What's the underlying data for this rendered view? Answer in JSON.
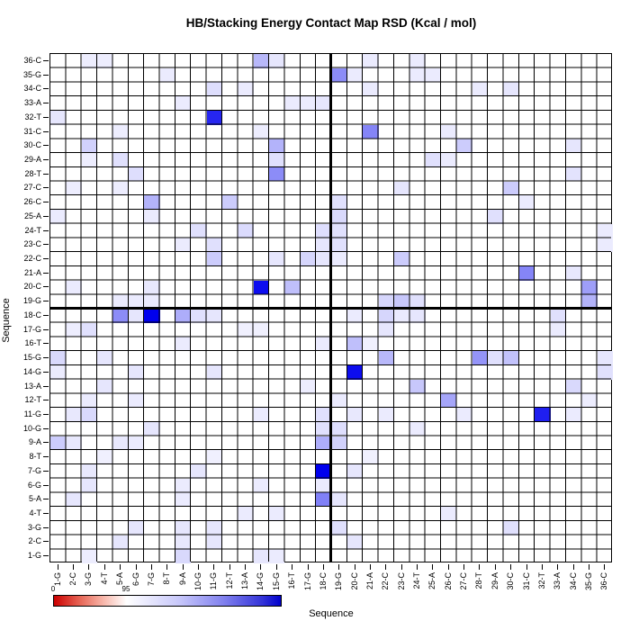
{
  "title": "HB/Stacking Energy Contact Map RSD (Kcal / mol)",
  "legend": {
    "min_label": "0",
    "mid_label": "95",
    "left_color": "#cc0000",
    "mid_color": "#ffffff",
    "right_color": "#0000cc",
    "white_position_pct": 32
  },
  "chart_data": {
    "type": "heatmap",
    "title": "HB/Stacking Energy Contact Map RSD (Kcal / mol)",
    "xlabel": "Sequence",
    "ylabel": "Sequence",
    "x_categories": [
      "1-G",
      "2-C",
      "3-G",
      "4-T",
      "5-A",
      "6-G",
      "7-G",
      "8-T",
      "9-A",
      "10-G",
      "11-G",
      "12-T",
      "13-A",
      "14-G",
      "15-G",
      "16-T",
      "17-G",
      "18-C",
      "19-G",
      "20-C",
      "21-A",
      "22-C",
      "23-C",
      "24-T",
      "25-A",
      "26-C",
      "27-C",
      "28-T",
      "29-A",
      "30-C",
      "31-C",
      "32-T",
      "33-A",
      "34-C",
      "35-G",
      "36-C"
    ],
    "y_categories": [
      "1-G",
      "2-C",
      "3-G",
      "4-T",
      "5-A",
      "6-G",
      "7-G",
      "8-T",
      "9-A",
      "10-G",
      "11-G",
      "12-T",
      "13-A",
      "14-G",
      "15-G",
      "16-T",
      "17-G",
      "18-C",
      "19-G",
      "20-C",
      "21-A",
      "22-C",
      "23-C",
      "24-T",
      "25-A",
      "26-C",
      "27-C",
      "28-T",
      "29-A",
      "30-C",
      "31-C",
      "32-T",
      "33-A",
      "34-C",
      "35-G",
      "36-C"
    ],
    "grid_on": true,
    "strand_divider_after_index": 18,
    "cell_max_color": "#0000ee",
    "cell_min_color": "#ffffff",
    "value_scale": "0 = white, 1 = saturated blue",
    "cells": [
      [
        "36-C",
        "3-G",
        0.07
      ],
      [
        "36-C",
        "4-T",
        0.07
      ],
      [
        "36-C",
        "14-G",
        0.28
      ],
      [
        "36-C",
        "15-G",
        0.1
      ],
      [
        "36-C",
        "21-A",
        0.08
      ],
      [
        "36-C",
        "24-T",
        0.08
      ],
      [
        "35-G",
        "8-T",
        0.08
      ],
      [
        "35-G",
        "19-G",
        0.45
      ],
      [
        "35-G",
        "20-C",
        0.08
      ],
      [
        "35-G",
        "24-T",
        0.08
      ],
      [
        "35-G",
        "25-A",
        0.08
      ],
      [
        "34-C",
        "11-G",
        0.13
      ],
      [
        "34-C",
        "13-A",
        0.08
      ],
      [
        "34-C",
        "21-A",
        0.08
      ],
      [
        "34-C",
        "28-T",
        0.08
      ],
      [
        "34-C",
        "30-C",
        0.1
      ],
      [
        "33-A",
        "9-A",
        0.08
      ],
      [
        "33-A",
        "16-T",
        0.08
      ],
      [
        "33-A",
        "17-G",
        0.08
      ],
      [
        "33-A",
        "18-C",
        0.1
      ],
      [
        "32-T",
        "1-G",
        0.1
      ],
      [
        "32-T",
        "11-G",
        0.85
      ],
      [
        "31-C",
        "5-A",
        0.07
      ],
      [
        "31-C",
        "14-G",
        0.07
      ],
      [
        "31-C",
        "21-A",
        0.48
      ],
      [
        "31-C",
        "26-C",
        0.08
      ],
      [
        "30-C",
        "3-G",
        0.18
      ],
      [
        "30-C",
        "15-G",
        0.3
      ],
      [
        "30-C",
        "27-C",
        0.2
      ],
      [
        "30-C",
        "34-C",
        0.1
      ],
      [
        "29-A",
        "3-G",
        0.07
      ],
      [
        "29-A",
        "5-A",
        0.12
      ],
      [
        "29-A",
        "15-G",
        0.12
      ],
      [
        "29-A",
        "25-A",
        0.12
      ],
      [
        "29-A",
        "26-C",
        0.08
      ],
      [
        "28-T",
        "6-G",
        0.13
      ],
      [
        "28-T",
        "15-G",
        0.45
      ],
      [
        "28-T",
        "34-C",
        0.11
      ],
      [
        "27-C",
        "2-C",
        0.07
      ],
      [
        "27-C",
        "5-A",
        0.07
      ],
      [
        "27-C",
        "23-C",
        0.1
      ],
      [
        "27-C",
        "30-C",
        0.2
      ],
      [
        "26-C",
        "7-G",
        0.3
      ],
      [
        "26-C",
        "12-T",
        0.2
      ],
      [
        "26-C",
        "19-G",
        0.12
      ],
      [
        "26-C",
        "31-C",
        0.08
      ],
      [
        "25-A",
        "1-G",
        0.08
      ],
      [
        "25-A",
        "7-G",
        0.08
      ],
      [
        "25-A",
        "19-G",
        0.15
      ],
      [
        "25-A",
        "29-A",
        0.12
      ],
      [
        "24-T",
        "10-G",
        0.12
      ],
      [
        "24-T",
        "13-A",
        0.14
      ],
      [
        "24-T",
        "18-C",
        0.13
      ],
      [
        "24-T",
        "19-G",
        0.12
      ],
      [
        "24-T",
        "36-C",
        0.08
      ],
      [
        "23-C",
        "9-A",
        0.08
      ],
      [
        "23-C",
        "11-G",
        0.12
      ],
      [
        "23-C",
        "18-C",
        0.1
      ],
      [
        "23-C",
        "19-G",
        0.12
      ],
      [
        "23-C",
        "36-C",
        0.08
      ],
      [
        "22-C",
        "11-G",
        0.2
      ],
      [
        "22-C",
        "15-G",
        0.1
      ],
      [
        "22-C",
        "17-G",
        0.16
      ],
      [
        "22-C",
        "18-C",
        0.1
      ],
      [
        "22-C",
        "19-G",
        0.08
      ],
      [
        "22-C",
        "23-C",
        0.2
      ],
      [
        "21-A",
        "31-C",
        0.48
      ],
      [
        "21-A",
        "34-C",
        0.09
      ],
      [
        "20-C",
        "2-C",
        0.08
      ],
      [
        "20-C",
        "7-G",
        0.09
      ],
      [
        "20-C",
        "14-G",
        0.95
      ],
      [
        "20-C",
        "16-T",
        0.25
      ],
      [
        "20-C",
        "35-G",
        0.38
      ],
      [
        "19-G",
        "5-A",
        0.08
      ],
      [
        "19-G",
        "6-G",
        0.08
      ],
      [
        "19-G",
        "7-G",
        0.08
      ],
      [
        "19-G",
        "22-C",
        0.16
      ],
      [
        "19-G",
        "23-C",
        0.22
      ],
      [
        "19-G",
        "24-T",
        0.12
      ],
      [
        "19-G",
        "35-G",
        0.3
      ],
      [
        "18-C",
        "5-A",
        0.45
      ],
      [
        "18-C",
        "6-G",
        0.1
      ],
      [
        "18-C",
        "7-G",
        1.0
      ],
      [
        "18-C",
        "9-A",
        0.32
      ],
      [
        "18-C",
        "10-G",
        0.12
      ],
      [
        "18-C",
        "11-G",
        0.1
      ],
      [
        "18-C",
        "20-C",
        0.08
      ],
      [
        "18-C",
        "22-C",
        0.16
      ],
      [
        "18-C",
        "23-C",
        0.08
      ],
      [
        "18-C",
        "24-T",
        0.1
      ],
      [
        "18-C",
        "33-A",
        0.12
      ],
      [
        "17-G",
        "2-C",
        0.07
      ],
      [
        "17-G",
        "3-G",
        0.12
      ],
      [
        "17-G",
        "13-A",
        0.06
      ],
      [
        "17-G",
        "14-G",
        0.06
      ],
      [
        "17-G",
        "22-C",
        0.1
      ],
      [
        "17-G",
        "33-A",
        0.08
      ],
      [
        "16-T",
        "9-A",
        0.08
      ],
      [
        "16-T",
        "18-C",
        0.08
      ],
      [
        "16-T",
        "20-C",
        0.25
      ],
      [
        "16-T",
        "21-A",
        0.06
      ],
      [
        "15-G",
        "1-G",
        0.15
      ],
      [
        "15-G",
        "4-T",
        0.1
      ],
      [
        "15-G",
        "22-C",
        0.28
      ],
      [
        "15-G",
        "28-T",
        0.42
      ],
      [
        "15-G",
        "29-A",
        0.12
      ],
      [
        "15-G",
        "30-C",
        0.24
      ],
      [
        "15-G",
        "36-C",
        0.1
      ],
      [
        "14-G",
        "1-G",
        0.08
      ],
      [
        "14-G",
        "6-G",
        0.1
      ],
      [
        "14-G",
        "11-G",
        0.1
      ],
      [
        "14-G",
        "20-C",
        0.95
      ],
      [
        "14-G",
        "36-C",
        0.12
      ],
      [
        "13-A",
        "4-T",
        0.1
      ],
      [
        "13-A",
        "17-G",
        0.07
      ],
      [
        "13-A",
        "24-T",
        0.22
      ],
      [
        "13-A",
        "34-C",
        0.15
      ],
      [
        "12-T",
        "3-G",
        0.08
      ],
      [
        "12-T",
        "6-G",
        0.08
      ],
      [
        "12-T",
        "19-G",
        0.08
      ],
      [
        "12-T",
        "26-C",
        0.35
      ],
      [
        "12-T",
        "35-G",
        0.07
      ],
      [
        "11-G",
        "2-C",
        0.09
      ],
      [
        "11-G",
        "3-G",
        0.15
      ],
      [
        "11-G",
        "14-G",
        0.08
      ],
      [
        "11-G",
        "18-C",
        0.12
      ],
      [
        "11-G",
        "20-C",
        0.09
      ],
      [
        "11-G",
        "22-C",
        0.08
      ],
      [
        "11-G",
        "27-C",
        0.08
      ],
      [
        "11-G",
        "32-T",
        0.88
      ],
      [
        "11-G",
        "34-C",
        0.08
      ],
      [
        "10-G",
        "7-G",
        0.1
      ],
      [
        "10-G",
        "18-C",
        0.12
      ],
      [
        "10-G",
        "19-G",
        0.13
      ],
      [
        "10-G",
        "24-T",
        0.08
      ],
      [
        "9-A",
        "1-G",
        0.2
      ],
      [
        "9-A",
        "2-C",
        0.09
      ],
      [
        "9-A",
        "5-A",
        0.09
      ],
      [
        "9-A",
        "6-G",
        0.08
      ],
      [
        "9-A",
        "18-C",
        0.32
      ],
      [
        "9-A",
        "19-G",
        0.18
      ],
      [
        "8-T",
        "4-T",
        0.06
      ],
      [
        "8-T",
        "11-G",
        0.06
      ],
      [
        "8-T",
        "21-A",
        0.06
      ],
      [
        "7-G",
        "3-G",
        0.09
      ],
      [
        "7-G",
        "10-G",
        0.1
      ],
      [
        "7-G",
        "18-C",
        1.0
      ],
      [
        "7-G",
        "20-C",
        0.1
      ],
      [
        "6-G",
        "3-G",
        0.1
      ],
      [
        "6-G",
        "9-A",
        0.08
      ],
      [
        "6-G",
        "14-G",
        0.08
      ],
      [
        "6-G",
        "18-C",
        0.08
      ],
      [
        "5-A",
        "2-C",
        0.1
      ],
      [
        "5-A",
        "9-A",
        0.08
      ],
      [
        "5-A",
        "18-C",
        0.5
      ],
      [
        "5-A",
        "19-G",
        0.1
      ],
      [
        "4-T",
        "13-A",
        0.08
      ],
      [
        "4-T",
        "15-G",
        0.08
      ],
      [
        "4-T",
        "26-C",
        0.08
      ],
      [
        "3-G",
        "6-G",
        0.1
      ],
      [
        "3-G",
        "9-A",
        0.1
      ],
      [
        "3-G",
        "11-G",
        0.1
      ],
      [
        "3-G",
        "19-G",
        0.12
      ],
      [
        "3-G",
        "30-C",
        0.12
      ],
      [
        "2-C",
        "5-A",
        0.1
      ],
      [
        "2-C",
        "9-A",
        0.09
      ],
      [
        "2-C",
        "11-G",
        0.1
      ],
      [
        "2-C",
        "20-C",
        0.1
      ],
      [
        "1-G",
        "3-G",
        0.07
      ],
      [
        "1-G",
        "9-A",
        0.15
      ],
      [
        "1-G",
        "14-G",
        0.1
      ],
      [
        "1-G",
        "15-G",
        0.08
      ]
    ]
  }
}
